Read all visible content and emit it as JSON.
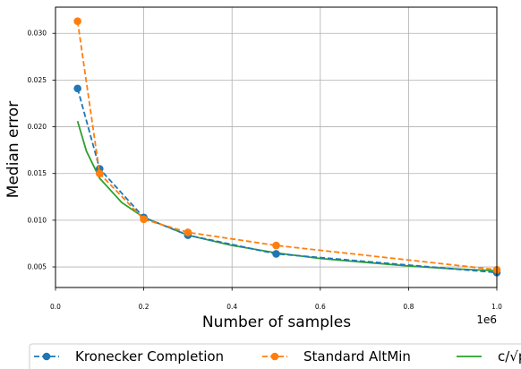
{
  "chart_data": {
    "type": "line",
    "xlabel": "Number of samples",
    "ylabel": "Median error",
    "x_offset_label": "1e6",
    "xlim": [
      0,
      1.0
    ],
    "ylim": [
      0.0028,
      0.0328
    ],
    "grid": true,
    "legend_placement": "bottom",
    "x_ticks": [
      0.0,
      0.2,
      0.4,
      0.6,
      0.8,
      1.0
    ],
    "x_tick_labels": [
      "0.0",
      "0.2",
      "0.4",
      "0.6",
      "0.8",
      "1.0"
    ],
    "y_ticks": [
      0.005,
      0.01,
      0.015,
      0.02,
      0.025,
      0.03
    ],
    "y_tick_labels": [
      "0.005",
      "0.010",
      "0.015",
      "0.020",
      "0.025",
      "0.030"
    ],
    "series": [
      {
        "name": "Kronecker Completion",
        "color": "#1f77b4",
        "style": "dashed-markers",
        "x": [
          0.05,
          0.1,
          0.2,
          0.3,
          0.5,
          1.0
        ],
        "y": [
          0.0241,
          0.0155,
          0.0103,
          0.0084,
          0.0064,
          0.0044
        ]
      },
      {
        "name": "Standard AltMin",
        "color": "#ff7f0e",
        "style": "dashed-markers",
        "x": [
          0.05,
          0.1,
          0.2,
          0.3,
          0.5,
          1.0
        ],
        "y": [
          0.0313,
          0.015,
          0.0101,
          0.0087,
          0.0073,
          0.0047
        ]
      },
      {
        "name": "c/√p",
        "color": "#2ca02c",
        "style": "solid",
        "formula": "y = 0.0046 / sqrt(x)",
        "x": [
          0.05,
          0.07,
          0.1,
          0.15,
          0.2,
          0.3,
          0.4,
          0.5,
          0.6,
          0.7,
          0.8,
          0.9,
          1.0
        ],
        "y": [
          0.0206,
          0.0174,
          0.0145,
          0.0119,
          0.0103,
          0.0084,
          0.0073,
          0.0065,
          0.0059,
          0.0055,
          0.0051,
          0.0048,
          0.0046
        ]
      }
    ]
  }
}
